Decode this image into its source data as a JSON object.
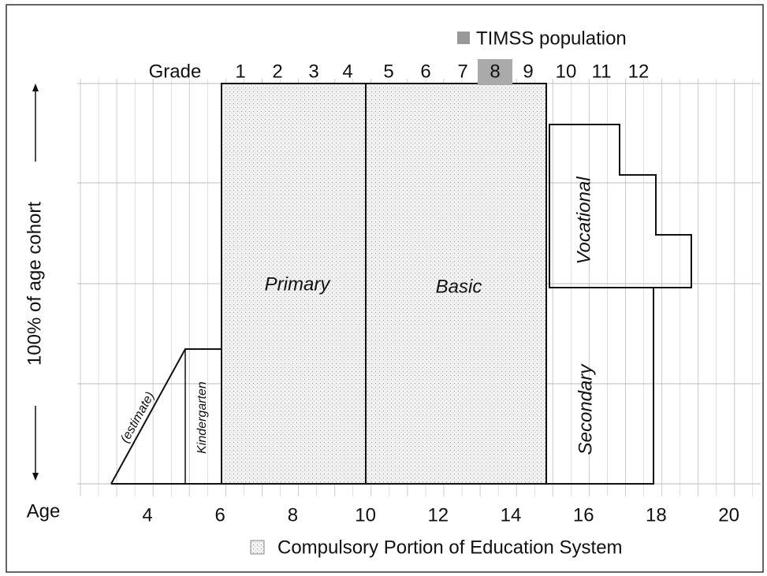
{
  "legend": {
    "timss": "TIMSS population",
    "compulsory": "Compulsory Portion of Education System"
  },
  "grade_label": "Grade",
  "grades": [
    "1",
    "2",
    "3",
    "4",
    "5",
    "6",
    "7",
    "8",
    "9",
    "10",
    "11",
    "12"
  ],
  "age_label": "Age",
  "ages": [
    "4",
    "6",
    "8",
    "10",
    "12",
    "14",
    "16",
    "18",
    "20"
  ],
  "y_axis_label": "100% of age cohort",
  "regions": {
    "primary": "Primary",
    "basic": "Basic",
    "vocational": "Vocational",
    "secondary": "Secondary",
    "kindergarten": "Kindergarten",
    "estimate": "(estimate)"
  }
}
